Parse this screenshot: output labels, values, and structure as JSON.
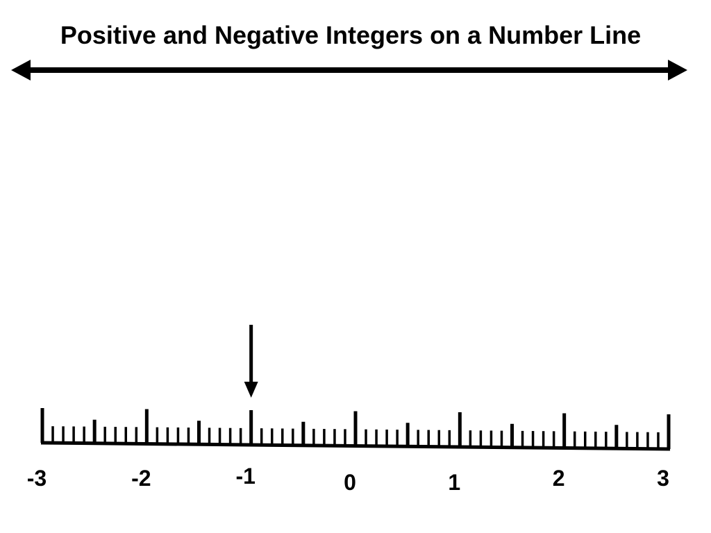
{
  "title": "Positive and Negative Integers on a Number Line",
  "number_line": {
    "min": -3,
    "max": 3,
    "labels": [
      "-3",
      "-2",
      "-1",
      "0",
      "1",
      "2",
      "3"
    ],
    "minor_divisions_per_unit": 10,
    "pointer_value": -1
  },
  "colors": {
    "ink": "#000000",
    "background": "#ffffff"
  }
}
